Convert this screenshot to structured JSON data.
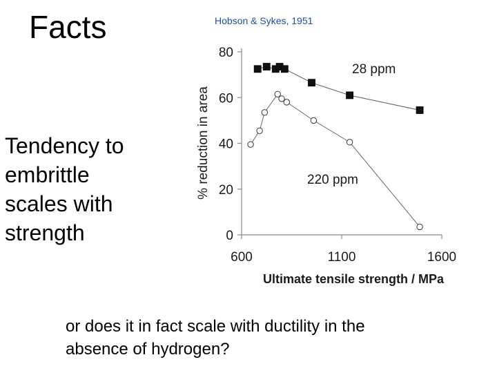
{
  "slide": {
    "title": "Facts",
    "citation": "Hobson & Sykes, 1951",
    "side_text": "Tendency to embrittle scales with strength",
    "question": "or does it in fact scale with ductility in the absence of hydrogen?"
  },
  "chart_data": {
    "type": "line",
    "title": "",
    "xlabel": "Ultimate tensile strength / MPa",
    "ylabel": "% reduction in area",
    "xlim": [
      600,
      1600
    ],
    "ylim": [
      0,
      80
    ],
    "xticks": [
      600,
      1100,
      1600
    ],
    "yticks": [
      0,
      20,
      40,
      60,
      80
    ],
    "grid": false,
    "series": [
      {
        "name": "28 ppm",
        "marker": "filled-square",
        "color": "#111111",
        "x": [
          680,
          725,
          770,
          790,
          815,
          950,
          1140,
          1490
        ],
        "y": [
          72.5,
          73.5,
          72.5,
          73.5,
          72.5,
          66.5,
          61,
          54.5
        ]
      },
      {
        "name": "220 ppm",
        "marker": "open-circle",
        "color": "#333333",
        "x": [
          645,
          690,
          715,
          780,
          800,
          825,
          960,
          1140,
          1490
        ],
        "y": [
          39.5,
          45.5,
          53.5,
          61.5,
          59.5,
          58,
          50,
          40.5,
          3.5
        ]
      }
    ]
  }
}
